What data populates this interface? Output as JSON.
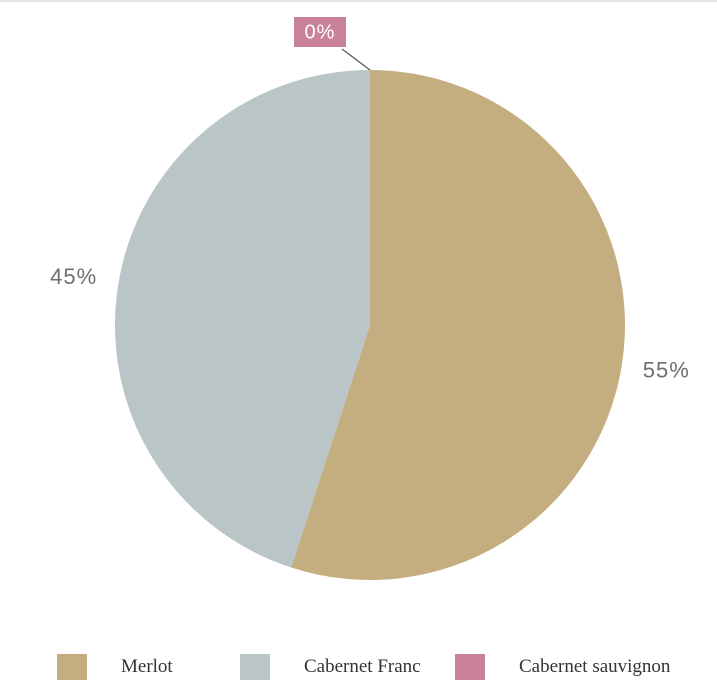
{
  "chart_data": {
    "type": "pie",
    "categories": [
      "Merlot",
      "Cabernet Franc",
      "Cabernet sauvignon"
    ],
    "values": [
      55,
      45,
      0
    ],
    "value_labels": [
      "55%",
      "45%",
      "0%"
    ],
    "colors": [
      "#c4ae80",
      "#b9c5c7",
      "#c98298"
    ],
    "legend": {
      "placement": "bottom",
      "entries": [
        "Merlot",
        "Cabernet Franc",
        "Cabernet sauvignon"
      ]
    }
  }
}
